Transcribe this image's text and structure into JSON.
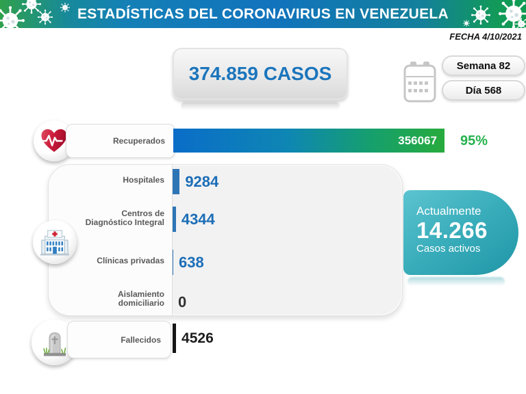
{
  "header": {
    "title": "ESTADÍSTICAS DEL CORONAVIRUS EN VENEZUELA"
  },
  "meta": {
    "date_label": "FECHA 4/10/2021",
    "week_label": "Semana 82",
    "day_label": "Día 568"
  },
  "total": {
    "label": "374.859 CASOS"
  },
  "recovered": {
    "label": "Recuperados",
    "value": "356067",
    "percent": "95%"
  },
  "facilities": [
    {
      "label": "Hospitales",
      "label2": "",
      "value": "9284"
    },
    {
      "label": "Centros de",
      "label2": "Diagnóstico Integral",
      "value": "4344"
    },
    {
      "label": "Clínicas privadas",
      "label2": "",
      "value": "638"
    },
    {
      "label": "Aislamiento",
      "label2": "domiciliario",
      "value": "0"
    }
  ],
  "deaths": {
    "label": "Fallecidos",
    "value": "4526"
  },
  "active": {
    "line1": "Actualmente",
    "value": "14.266",
    "line2": "Casos activos"
  },
  "icons": [
    "virus-icon",
    "calendar-icon",
    "heart-pulse-icon",
    "hospital-icon",
    "tombstone-icon"
  ],
  "colors": {
    "header_green": "#2fa04c",
    "header_blue": "#1173bd",
    "header_teal": "#13809c",
    "accent_blue": "#1b75bc",
    "bar_blue": "#0a6dc8",
    "bar_green": "#27ab3d",
    "percent_green": "#26b14c",
    "active_teal": "#3aadbb",
    "label_gray": "#595959",
    "deaths_black": "#141414"
  },
  "chart_data": {
    "type": "bar",
    "title": "ESTADÍSTICAS DEL CORONAVIRUS EN VENEZUELA",
    "date": "4/10/2021",
    "week": 82,
    "day": 568,
    "total_cases": 374859,
    "categories": [
      "Recuperados",
      "Hospitales",
      "Centros de Diagnóstico Integral",
      "Clínicas privadas",
      "Aislamiento domiciliario",
      "Fallecidos"
    ],
    "values": [
      356067,
      9284,
      4344,
      638,
      0,
      4526
    ],
    "recovered_percent": 95,
    "active_cases": 14266,
    "orientation": "horizontal",
    "grid": false,
    "legend": false
  }
}
